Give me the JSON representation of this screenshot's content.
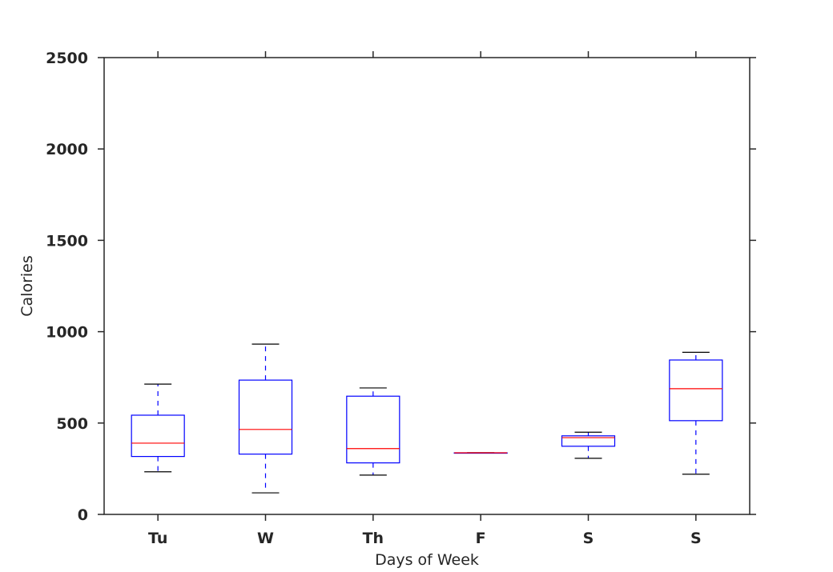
{
  "chart_data": {
    "type": "box",
    "title": "",
    "xlabel": "Days of Week",
    "ylabel": "Calories",
    "ylim": [
      0,
      2500
    ],
    "yticks": [
      0,
      500,
      1000,
      1500,
      2000,
      2500
    ],
    "grid": false,
    "categories": [
      "Tu",
      "W",
      "Th",
      "F",
      "S",
      "S"
    ],
    "boxes": [
      {
        "label": "Tu",
        "whisker_low": 233,
        "q1": 317,
        "median": 390,
        "q3": 543,
        "whisker_high": 713
      },
      {
        "label": "W",
        "whisker_low": 118,
        "q1": 330,
        "median": 465,
        "q3": 735,
        "whisker_high": 932
      },
      {
        "label": "Th",
        "whisker_low": 215,
        "q1": 282,
        "median": 360,
        "q3": 647,
        "whisker_high": 692
      },
      {
        "label": "F",
        "whisker_low": 337,
        "q1": 337,
        "median": 337,
        "q3": 337,
        "whisker_high": 337
      },
      {
        "label": "S",
        "whisker_low": 307,
        "q1": 373,
        "median": 420,
        "q3": 430,
        "whisker_high": 450
      },
      {
        "label": "S",
        "whisker_low": 220,
        "q1": 513,
        "median": 688,
        "q3": 845,
        "whisker_high": 887
      }
    ],
    "colors": {
      "box": "#0000ff",
      "median": "#ff0000",
      "whisker_cap": "#000000",
      "axis": "#262626"
    }
  }
}
